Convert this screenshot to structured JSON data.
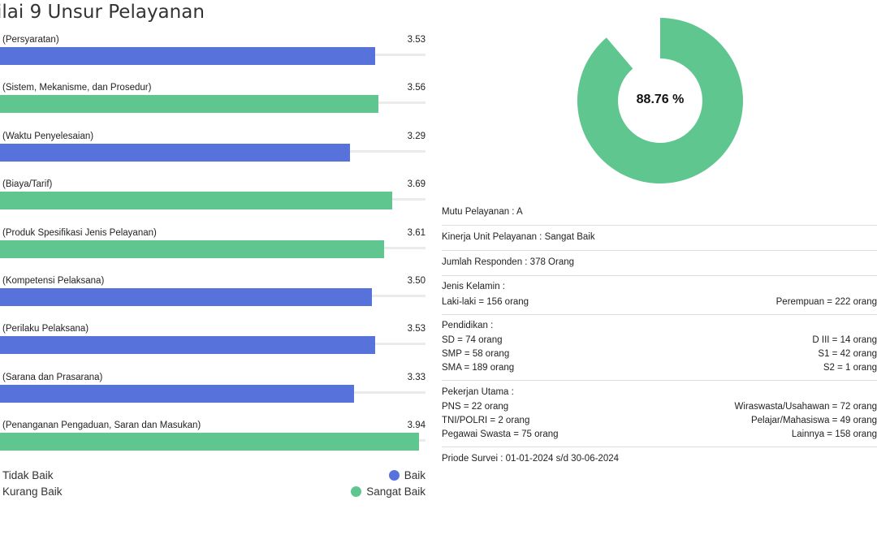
{
  "title": "ilai 9 Unsur Pelayanan",
  "colors": {
    "blue": "#5872DB",
    "green": "#5EC68E",
    "track": "#EBEBEB"
  },
  "chart_data": {
    "type": "bar",
    "orientation": "horizontal",
    "categories": [
      "(Persyaratan)",
      "(Sistem, Mekanisme, dan Prosedur)",
      "(Waktu Penyelesaian)",
      "(Biaya/Tarif)",
      "(Produk Spesifikasi Jenis Pelayanan)",
      "(Kompetensi Pelaksana)",
      "(Perilaku Pelaksana)",
      "(Sarana dan Prasarana)",
      "(Penanganan Pengaduan, Saran dan Masukan)"
    ],
    "values": [
      3.53,
      3.56,
      3.29,
      3.69,
      3.61,
      3.5,
      3.53,
      3.33,
      3.94
    ],
    "value_labels": [
      "3.53",
      "3.56",
      "3.29",
      "3.69",
      "3.61",
      "3.50",
      "3.53",
      "3.33",
      "3.94"
    ],
    "bar_colors": [
      "#5872DB",
      "#5EC68E",
      "#5872DB",
      "#5EC68E",
      "#5EC68E",
      "#5872DB",
      "#5872DB",
      "#5872DB",
      "#5EC68E"
    ],
    "xlim": [
      0,
      4
    ],
    "legend": [
      {
        "label": "Tidak Baik",
        "color": ""
      },
      {
        "label": "Baik",
        "color": "#5872DB"
      },
      {
        "label": "Kurang Baik",
        "color": ""
      },
      {
        "label": "Sangat Baik",
        "color": "#5EC68E"
      }
    ]
  },
  "donut": {
    "value": 88.76,
    "label": "88.76 %",
    "color": "#5EC68E"
  },
  "summary": {
    "mutu": "Mutu Pelayanan : A",
    "kinerja": "Kinerja Unit Pelayanan : Sangat Baik",
    "responden": "Jumlah Responden : 378 Orang",
    "gender_title": "Jenis Kelamin :",
    "gender_left": "Laki-laki = 156 orang",
    "gender_right": "Perempuan = 222 orang",
    "edu_title": "Pendidikan :",
    "edu_left": [
      "SD = 74 orang",
      "SMP = 58 orang",
      "SMA = 189 orang"
    ],
    "edu_right": [
      "D III = 14 orang",
      "S1 = 42 orang",
      "S2 = 1 orang"
    ],
    "job_title": "Pekerjan Utama :",
    "job_left": [
      "PNS = 22 orang",
      "TNI/POLRI = 2 orang",
      "Pegawai Swasta = 75 orang"
    ],
    "job_right": [
      "Wiraswasta/Usahawan = 72 orang",
      "Pelajar/Mahasiswa = 49 orang",
      "Lainnya = 158 orang"
    ],
    "periode": "Priode Survei : 01-01-2024 s/d 30-06-2024"
  }
}
